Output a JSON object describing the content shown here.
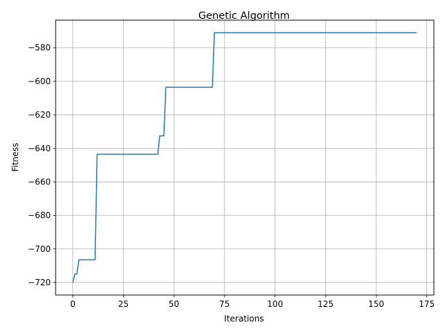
{
  "chart_data": {
    "type": "line",
    "title": "Genetic Algorithm",
    "xlabel": "Iterations",
    "ylabel": "Fitness",
    "xlim": [
      -8.5,
      178.5
    ],
    "ylim": [
      -727.5,
      -563.5
    ],
    "xticks": [
      0,
      25,
      50,
      75,
      100,
      125,
      150,
      175
    ],
    "yticks": [
      -720,
      -700,
      -680,
      -660,
      -640,
      -620,
      -600,
      -580
    ],
    "grid": true,
    "line_color": "#1f77b4",
    "series": [
      {
        "x": [
          0,
          1,
          2,
          3,
          11,
          12,
          42,
          43,
          45,
          46,
          69,
          70,
          170
        ],
        "y": [
          -720,
          -715,
          -715,
          -706.5,
          -706.5,
          -643.5,
          -643.5,
          -632.5,
          -632.5,
          -603.5,
          -603.5,
          -571,
          -571
        ]
      }
    ]
  }
}
